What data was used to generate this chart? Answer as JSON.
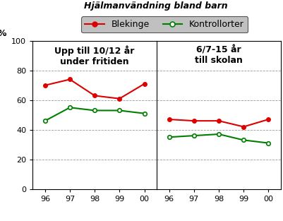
{
  "title": "Hjälmanvändning bland barn",
  "legend_entries": [
    "Blekinge",
    "Kontrollorter"
  ],
  "x_labels": [
    "96",
    "97",
    "98",
    "99",
    "00"
  ],
  "panel1": {
    "title_line1": "Upp till 10/12 år",
    "title_line2": "under fritiden",
    "blekinge": [
      70,
      74,
      63,
      61,
      71
    ],
    "kontroll": [
      46,
      55,
      53,
      53,
      51
    ]
  },
  "panel2": {
    "title_line1": "6/7-15 år",
    "title_line2": "till skolan",
    "blekinge": [
      47,
      46,
      46,
      42,
      47
    ],
    "kontroll": [
      35,
      36,
      37,
      33,
      31
    ]
  },
  "ylim": [
    0,
    100
  ],
  "yticks": [
    0,
    20,
    40,
    60,
    80,
    100
  ],
  "ylabel": "%",
  "red": "#dd0000",
  "green": "#008000",
  "bg_color": "#ffffff",
  "grid_color": "#999999",
  "title_fontsize": 9,
  "panel_title_fontsize": 9,
  "tick_fontsize": 8,
  "legend_fontsize": 9,
  "legend_bg": "#c0c0c0"
}
